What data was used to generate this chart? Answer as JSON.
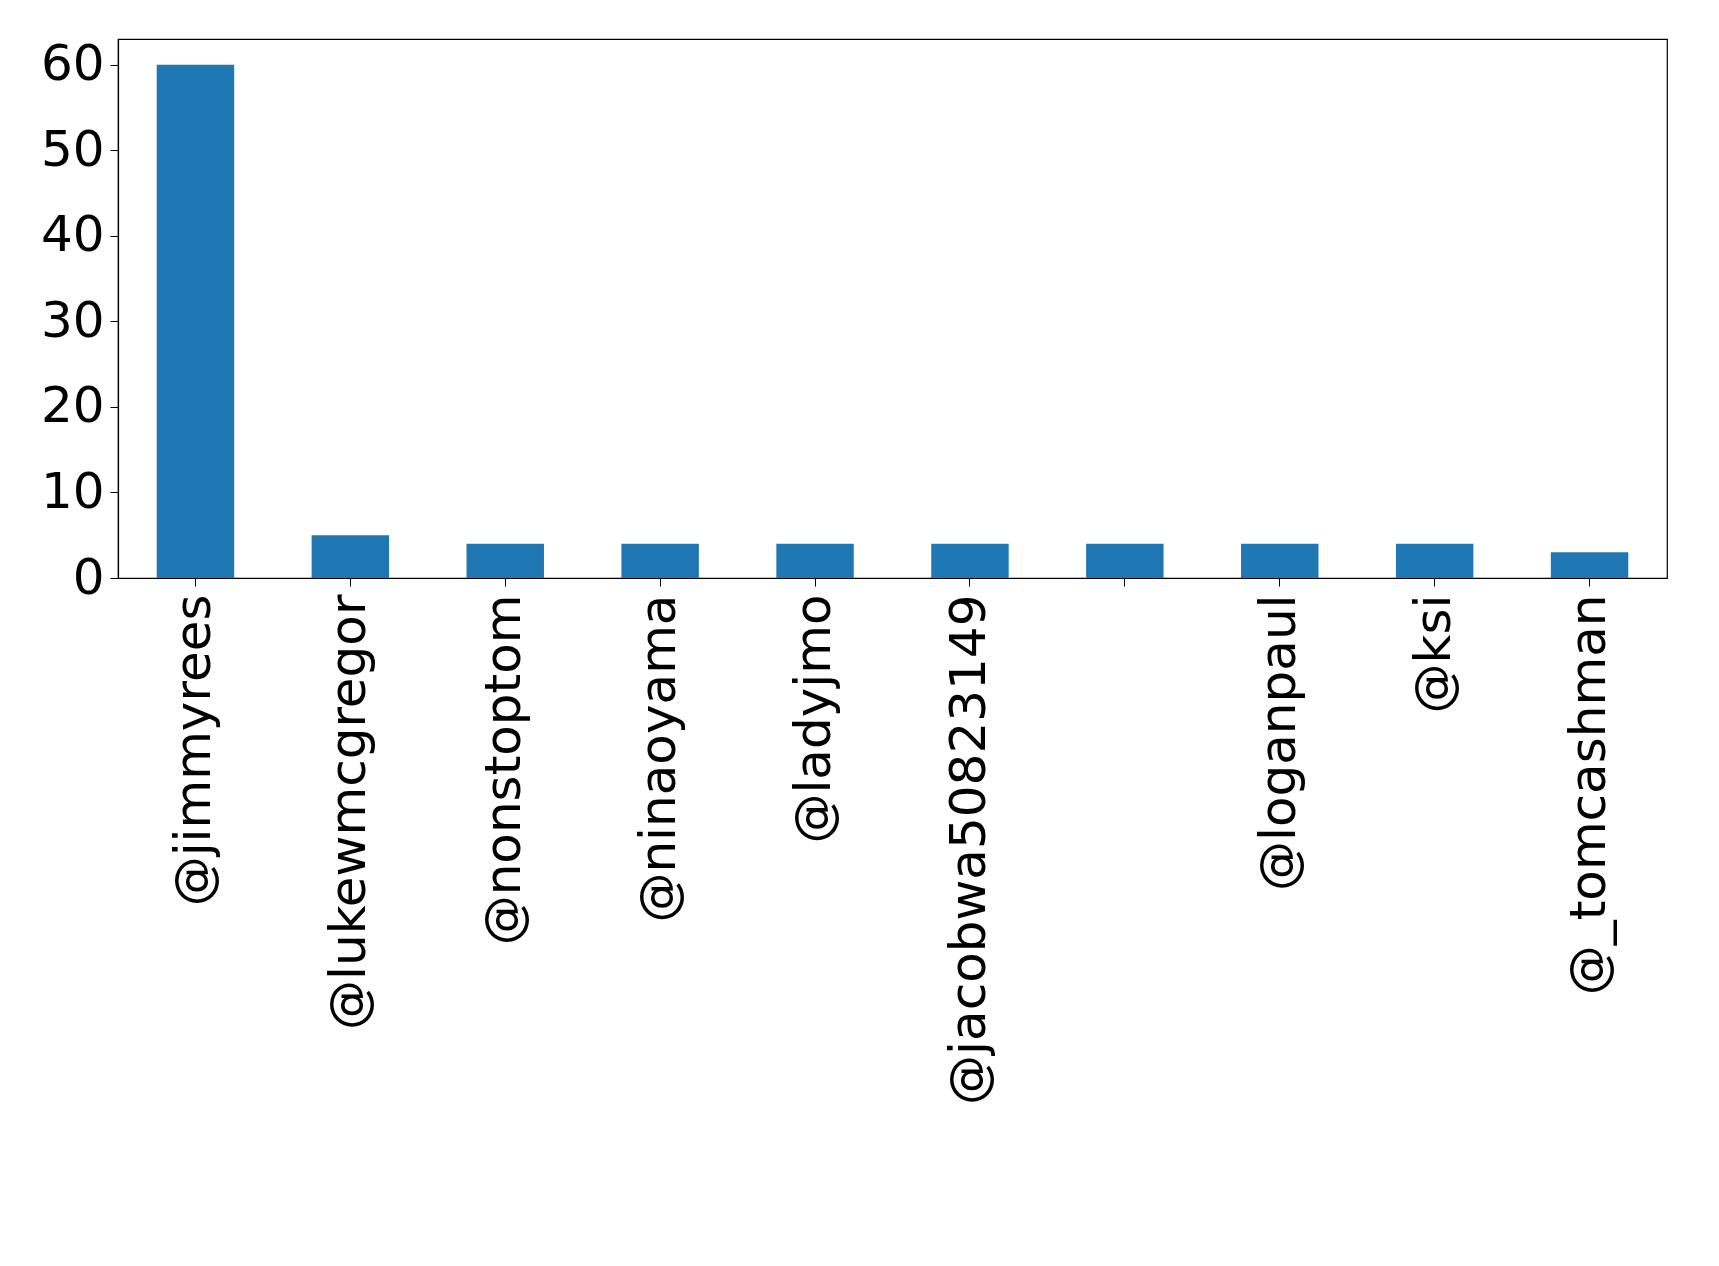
{
  "chart_data": {
    "type": "bar",
    "categories": [
      "@jimmyrees",
      "@lukewmcgregor",
      "@nonstoptom",
      "@ninaoyama",
      "@ladyjmo",
      "@jacobwa50823149",
      null,
      "@loganpaul",
      "@ksi",
      "@_tomcashman"
    ],
    "values": [
      60,
      5,
      4,
      4,
      4,
      4,
      4,
      4,
      4,
      3
    ],
    "color": "#1f77b4",
    "ylim": [
      0,
      63
    ],
    "yticks": [
      0,
      10,
      20,
      30,
      40,
      50,
      60
    ],
    "grid": false
  }
}
